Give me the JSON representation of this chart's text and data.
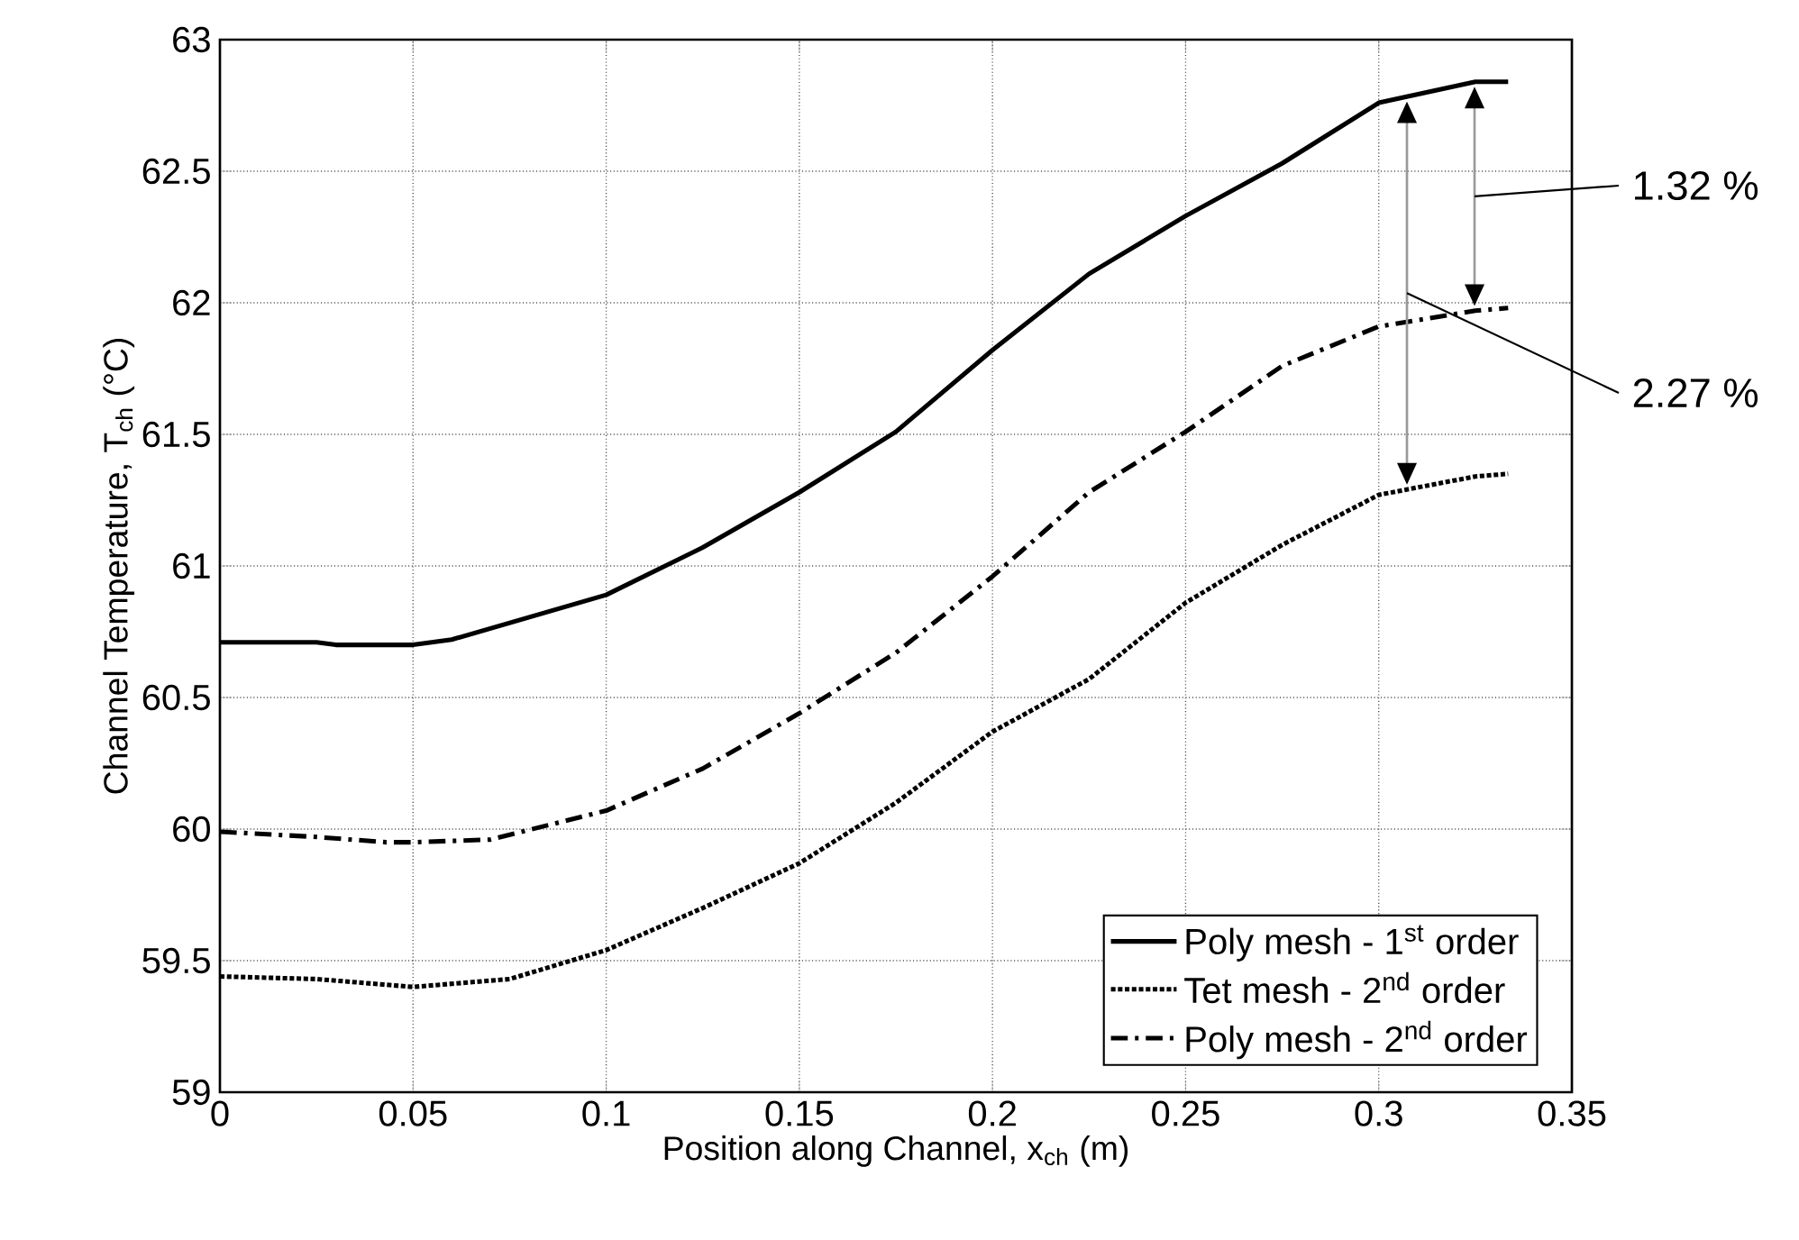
{
  "chart_data": {
    "type": "line",
    "xlabel": "Position along Channel, x$_{ch}$ (m)",
    "ylabel": "Channel Temperature, T$_{ch}$ (°C)",
    "xlim": [
      0,
      0.35
    ],
    "ylim": [
      59,
      63
    ],
    "xticks": [
      0,
      0.05,
      0.1,
      0.15,
      0.2,
      0.25,
      0.3,
      0.35
    ],
    "yticks": [
      59,
      59.5,
      60,
      60.5,
      61,
      61.5,
      62,
      62.5,
      63
    ],
    "grid": true,
    "legend": "bottom right",
    "series": [
      {
        "name": "Poly mesh - 1$^{st}$ order",
        "color": "#000000",
        "line_style": "solid",
        "x": [
          0,
          0.025,
          0.03,
          0.05,
          0.06,
          0.1,
          0.125,
          0.15,
          0.175,
          0.2,
          0.225,
          0.25,
          0.275,
          0.3,
          0.325,
          0.3335
        ],
        "values": [
          60.71,
          60.71,
          60.7,
          60.7,
          60.72,
          60.89,
          61.07,
          61.28,
          61.51,
          61.82,
          62.11,
          62.33,
          62.53,
          62.76,
          62.84,
          62.84
        ]
      },
      {
        "name": "Tet mesh - 2$^{nd}$ order",
        "color": "#000000",
        "line_style": "dotted",
        "x": [
          0,
          0.025,
          0.05,
          0.075,
          0.1,
          0.125,
          0.15,
          0.175,
          0.2,
          0.225,
          0.25,
          0.275,
          0.3,
          0.325,
          0.3335
        ],
        "values": [
          59.44,
          59.43,
          59.4,
          59.43,
          59.54,
          59.7,
          59.87,
          60.1,
          60.37,
          60.57,
          60.86,
          61.08,
          61.27,
          61.34,
          61.35
        ]
      },
      {
        "name": "Poly mesh - 2$^{nd}$ order",
        "color": "#000000",
        "line_style": "dashdot",
        "x": [
          0,
          0.025,
          0.043,
          0.05,
          0.07,
          0.1,
          0.125,
          0.15,
          0.175,
          0.2,
          0.225,
          0.25,
          0.275,
          0.3,
          0.325,
          0.3335
        ],
        "values": [
          59.99,
          59.97,
          59.95,
          59.95,
          59.96,
          60.07,
          60.23,
          60.44,
          60.67,
          60.96,
          61.28,
          61.51,
          61.76,
          61.91,
          61.97,
          61.98
        ]
      }
    ],
    "annotations": [
      "1.32 %",
      "2.27 %"
    ]
  }
}
